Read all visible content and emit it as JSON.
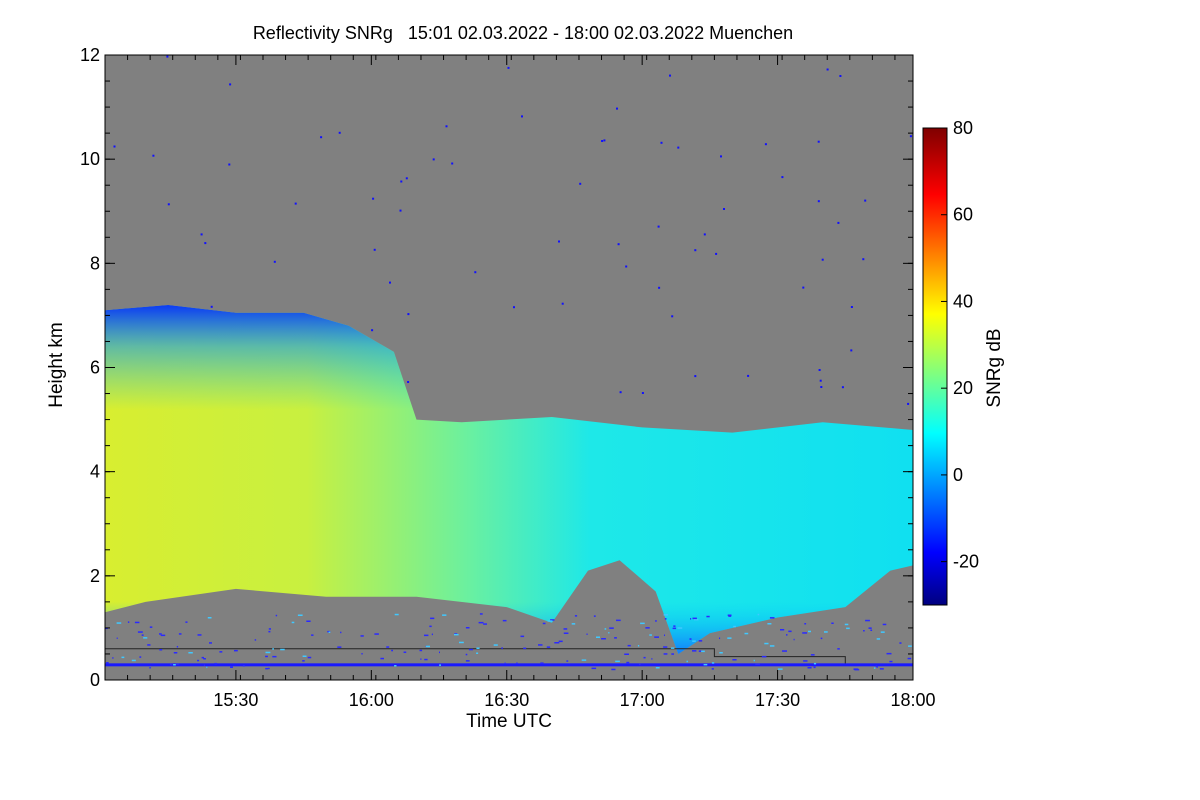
{
  "chart_data": {
    "type": "heatmap",
    "title": "Reflectivity SNRg   15:01 02.03.2022 - 18:00 02.03.2022 Muenchen",
    "xlabel": "Time UTC",
    "ylabel": "Height km",
    "xlim": [
      "15:01",
      "18:00"
    ],
    "ylim": [
      0,
      12
    ],
    "x_ticks": [
      "15:30",
      "16:00",
      "16:30",
      "17:00",
      "17:30",
      "18:00"
    ],
    "y_ticks": [
      "0",
      "2",
      "4",
      "6",
      "8",
      "10",
      "12"
    ],
    "background_color": "#808080",
    "colorbar": {
      "label": "SNRg dB",
      "range": [
        -30,
        80
      ],
      "ticks": [
        "-20",
        "0",
        "20",
        "40",
        "60",
        "80"
      ],
      "colormap": "jet"
    },
    "echo_region": {
      "cloud_top_km": [
        {
          "t": "15:01",
          "h": 7.1
        },
        {
          "t": "15:15",
          "h": 7.2
        },
        {
          "t": "15:30",
          "h": 7.05
        },
        {
          "t": "15:45",
          "h": 7.05
        },
        {
          "t": "15:55",
          "h": 6.8
        },
        {
          "t": "16:05",
          "h": 6.3
        },
        {
          "t": "16:10",
          "h": 5.0
        },
        {
          "t": "16:20",
          "h": 4.95
        },
        {
          "t": "16:40",
          "h": 5.05
        },
        {
          "t": "17:00",
          "h": 4.85
        },
        {
          "t": "17:20",
          "h": 4.75
        },
        {
          "t": "17:40",
          "h": 4.95
        },
        {
          "t": "18:00",
          "h": 4.8
        }
      ],
      "cloud_base_km": [
        {
          "t": "15:01",
          "h": 1.3
        },
        {
          "t": "15:10",
          "h": 1.5
        },
        {
          "t": "15:30",
          "h": 1.75
        },
        {
          "t": "15:50",
          "h": 1.6
        },
        {
          "t": "16:10",
          "h": 1.6
        },
        {
          "t": "16:30",
          "h": 1.4
        },
        {
          "t": "16:40",
          "h": 1.1
        },
        {
          "t": "16:48",
          "h": 2.1
        },
        {
          "t": "16:55",
          "h": 2.3
        },
        {
          "t": "17:03",
          "h": 1.7
        },
        {
          "t": "17:08",
          "h": 0.5
        },
        {
          "t": "17:15",
          "h": 0.9
        },
        {
          "t": "17:30",
          "h": 1.2
        },
        {
          "t": "17:45",
          "h": 1.4
        },
        {
          "t": "17:55",
          "h": 2.1
        },
        {
          "t": "18:00",
          "h": 2.2
        }
      ],
      "peak_snr_db": 40
    }
  }
}
